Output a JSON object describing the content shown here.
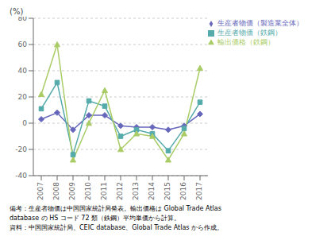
{
  "chart_data": {
    "type": "line",
    "ylabel": "(%)",
    "x": [
      2007,
      2008,
      2009,
      2010,
      2011,
      2012,
      2013,
      2014,
      2015,
      2016,
      2017
    ],
    "xlim": [
      2006.5,
      2017.5
    ],
    "xticks": [
      2007,
      2008,
      2009,
      2010,
      2011,
      2012,
      2013,
      2014,
      2015,
      2016,
      2017
    ],
    "ylim": [
      -40,
      80
    ],
    "yticks": [
      -40,
      -20,
      0,
      20,
      40,
      60,
      80
    ],
    "grid": true,
    "legend": "upper right",
    "series": [
      {
        "name": "生産者物価（製造業全体）",
        "color": "#6666bb",
        "marker": "diamond",
        "values": [
          3,
          8,
          -5,
          6,
          6,
          -2,
          -3,
          -3,
          -5,
          -2,
          7
        ]
      },
      {
        "name": "生産者物価（鉄鋼）",
        "color": "#55aaaa",
        "marker": "square",
        "values": [
          11,
          31,
          -24,
          17,
          13,
          -10,
          -5,
          -8,
          -21,
          -4,
          16
        ]
      },
      {
        "name": "輸出価格（鉄鋼）",
        "color": "#aacc66",
        "marker": "triangle",
        "values": [
          22,
          60,
          -28,
          0,
          25,
          -20,
          -8,
          -10,
          -28,
          -8,
          42
        ]
      }
    ],
    "annotations": [
      "備考：生産者物価は中国国家統計局発表。輸出価格は Global Trade Atlas",
      "database の HS コード 72 類（鉄鋼）平均単価から計算。",
      "資料：中国国家統計局、CEIC database、Global Trade Atlas から作成。"
    ]
  }
}
